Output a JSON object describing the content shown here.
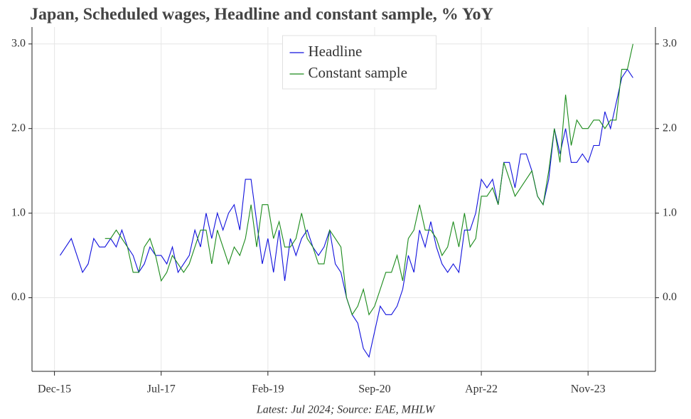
{
  "chart_data": {
    "type": "line",
    "title": "Japan, Scheduled wages, Headline and constant sample, % YoY",
    "footnote": "Latest: Jul 2024; Source: EAE, MHLW",
    "x": [
      "2016-01",
      "2016-02",
      "2016-03",
      "2016-04",
      "2016-05",
      "2016-06",
      "2016-07",
      "2016-08",
      "2016-09",
      "2016-10",
      "2016-11",
      "2016-12",
      "2017-01",
      "2017-02",
      "2017-03",
      "2017-04",
      "2017-05",
      "2017-06",
      "2017-07",
      "2017-08",
      "2017-09",
      "2017-10",
      "2017-11",
      "2017-12",
      "2018-01",
      "2018-02",
      "2018-03",
      "2018-04",
      "2018-05",
      "2018-06",
      "2018-07",
      "2018-08",
      "2018-09",
      "2018-10",
      "2018-11",
      "2018-12",
      "2019-01",
      "2019-02",
      "2019-03",
      "2019-04",
      "2019-05",
      "2019-06",
      "2019-07",
      "2019-08",
      "2019-09",
      "2019-10",
      "2019-11",
      "2019-12",
      "2020-01",
      "2020-02",
      "2020-03",
      "2020-04",
      "2020-05",
      "2020-06",
      "2020-07",
      "2020-08",
      "2020-09",
      "2020-10",
      "2020-11",
      "2020-12",
      "2021-01",
      "2021-02",
      "2021-03",
      "2021-04",
      "2021-05",
      "2021-06",
      "2021-07",
      "2021-08",
      "2021-09",
      "2021-10",
      "2021-11",
      "2021-12",
      "2022-01",
      "2022-02",
      "2022-03",
      "2022-04",
      "2022-05",
      "2022-06",
      "2022-07",
      "2022-08",
      "2022-09",
      "2022-10",
      "2022-11",
      "2022-12",
      "2023-01",
      "2023-02",
      "2023-03",
      "2023-04",
      "2023-05",
      "2023-06",
      "2023-07",
      "2023-08",
      "2023-09",
      "2023-10",
      "2023-11",
      "2023-12",
      "2024-01",
      "2024-02",
      "2024-03",
      "2024-04",
      "2024-05",
      "2024-06",
      "2024-07"
    ],
    "series": [
      {
        "name": "Headline",
        "color": "#1010dd",
        "values": [
          0.5,
          0.6,
          0.7,
          0.5,
          0.3,
          0.4,
          0.7,
          0.6,
          0.6,
          0.7,
          0.6,
          0.8,
          0.6,
          0.5,
          0.3,
          0.4,
          0.6,
          0.5,
          0.5,
          0.4,
          0.6,
          0.3,
          0.4,
          0.5,
          0.8,
          0.6,
          1.0,
          0.7,
          1.0,
          0.8,
          1.0,
          1.1,
          0.8,
          1.4,
          1.4,
          0.9,
          0.4,
          0.7,
          0.3,
          0.8,
          0.2,
          0.7,
          0.5,
          0.7,
          0.8,
          0.6,
          0.5,
          0.6,
          0.8,
          0.4,
          0.3,
          0.0,
          -0.2,
          -0.3,
          -0.6,
          -0.7,
          -0.4,
          -0.1,
          -0.2,
          -0.2,
          -0.1,
          0.1,
          0.5,
          0.3,
          0.8,
          0.6,
          0.9,
          0.6,
          0.4,
          0.3,
          0.4,
          0.3,
          0.8,
          0.8,
          1.0,
          1.4,
          1.3,
          1.4,
          1.1,
          1.6,
          1.6,
          1.3,
          1.7,
          1.7,
          1.5,
          1.2,
          1.1,
          1.4,
          2.0,
          1.7,
          2.0,
          1.6,
          1.6,
          1.7,
          1.6,
          1.8,
          1.8,
          2.2,
          2.0,
          2.3,
          2.6,
          2.7,
          2.6
        ]
      },
      {
        "name": "Constant sample",
        "color": "#1a8a1a",
        "values": [
          null,
          null,
          null,
          null,
          null,
          null,
          null,
          null,
          0.7,
          0.7,
          0.8,
          0.7,
          0.6,
          0.3,
          0.3,
          0.6,
          0.7,
          0.5,
          0.2,
          0.3,
          0.5,
          0.4,
          0.3,
          0.4,
          0.6,
          0.8,
          0.8,
          0.4,
          0.8,
          0.6,
          0.4,
          0.6,
          0.5,
          0.7,
          1.1,
          0.6,
          1.1,
          1.1,
          0.7,
          0.9,
          0.6,
          0.6,
          0.7,
          1.0,
          0.7,
          0.6,
          0.4,
          0.4,
          0.8,
          0.7,
          0.6,
          0.0,
          -0.2,
          -0.1,
          0.1,
          -0.2,
          -0.1,
          0.1,
          0.3,
          0.3,
          0.5,
          0.2,
          0.7,
          0.8,
          1.1,
          0.8,
          0.8,
          0.7,
          0.5,
          0.6,
          0.9,
          0.6,
          1.0,
          0.6,
          0.7,
          1.2,
          1.2,
          1.3,
          1.1,
          1.6,
          1.4,
          1.2,
          1.3,
          1.4,
          1.5,
          1.2,
          1.1,
          1.5,
          2.0,
          1.6,
          2.4,
          1.8,
          2.1,
          2.0,
          2.0,
          2.1,
          2.1,
          2.0,
          2.1,
          2.1,
          2.7,
          2.7,
          3.0
        ]
      }
    ],
    "xlim": [
      "2015-08",
      "2024-11"
    ],
    "xticks": [
      {
        "value": "2015-12",
        "label": "Dec-15"
      },
      {
        "value": "2017-07",
        "label": "Jul-17"
      },
      {
        "value": "2019-02",
        "label": "Feb-19"
      },
      {
        "value": "2020-09",
        "label": "Sep-20"
      },
      {
        "value": "2022-04",
        "label": "Apr-22"
      },
      {
        "value": "2023-11",
        "label": "Nov-23"
      }
    ],
    "ylim": [
      -0.87,
      3.2
    ],
    "yticks": [
      {
        "value": 0,
        "label": "0.0"
      },
      {
        "value": 1,
        "label": "1.0"
      },
      {
        "value": 2,
        "label": "2.0"
      },
      {
        "value": 3,
        "label": "3.0"
      }
    ],
    "grid": true,
    "legend": "upper center"
  }
}
